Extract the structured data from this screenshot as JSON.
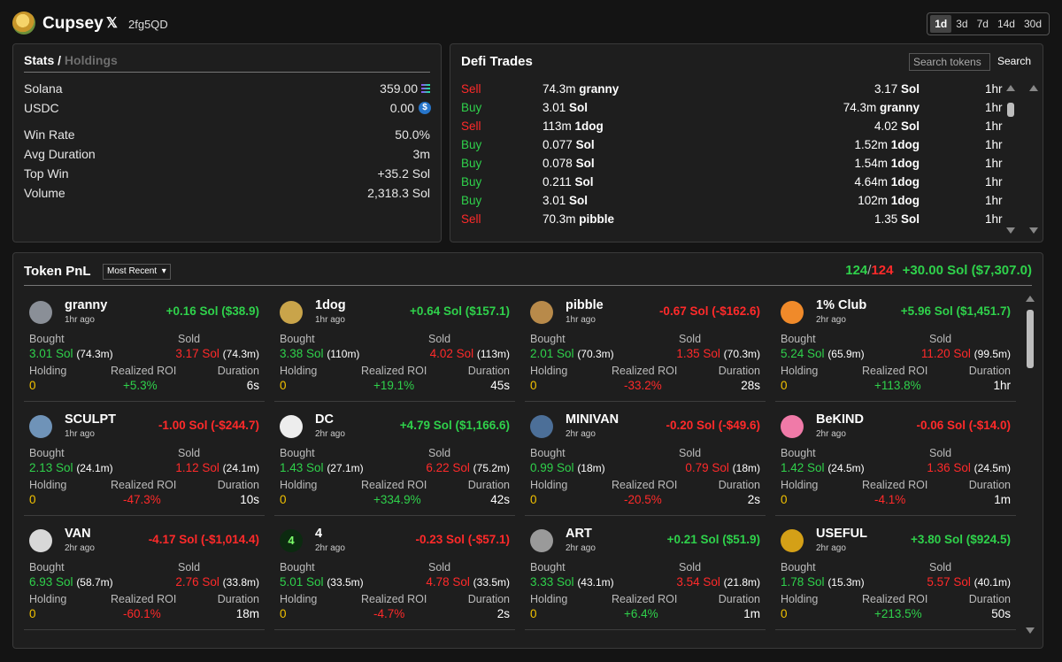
{
  "header": {
    "name": "Cupsey",
    "x_icon": "x-logo-icon",
    "handle": "2fg5QD",
    "ranges": [
      "1d",
      "3d",
      "7d",
      "14d",
      "30d"
    ],
    "active_range": "1d"
  },
  "stats": {
    "title": "Stats /",
    "tab_holdings": "Holdings",
    "solana_label": "Solana",
    "solana_value": "359.00",
    "usdc_label": "USDC",
    "usdc_value": "0.00",
    "winrate_label": "Win Rate",
    "winrate_value": "50.0%",
    "avgdur_label": "Avg Duration",
    "avgdur_value": "3m",
    "topwin_label": "Top Win",
    "topwin_value": "+35.2 Sol",
    "volume_label": "Volume",
    "volume_value": "2,318.3 Sol"
  },
  "trades": {
    "title": "Defi Trades",
    "search_placeholder": "Search tokens",
    "search_button": "Search",
    "rows": [
      {
        "side": "Sell",
        "in_amt": "74.3m",
        "in_tok": "granny",
        "out_amt": "3.17",
        "out_tok": "Sol",
        "age": "1hr"
      },
      {
        "side": "Buy",
        "in_amt": "3.01",
        "in_tok": "Sol",
        "out_amt": "74.3m",
        "out_tok": "granny",
        "age": "1hr"
      },
      {
        "side": "Sell",
        "in_amt": "113m",
        "in_tok": "1dog",
        "out_amt": "4.02",
        "out_tok": "Sol",
        "age": "1hr"
      },
      {
        "side": "Buy",
        "in_amt": "0.077",
        "in_tok": "Sol",
        "out_amt": "1.52m",
        "out_tok": "1dog",
        "age": "1hr"
      },
      {
        "side": "Buy",
        "in_amt": "0.078",
        "in_tok": "Sol",
        "out_amt": "1.54m",
        "out_tok": "1dog",
        "age": "1hr"
      },
      {
        "side": "Buy",
        "in_amt": "0.211",
        "in_tok": "Sol",
        "out_amt": "4.64m",
        "out_tok": "1dog",
        "age": "1hr"
      },
      {
        "side": "Buy",
        "in_amt": "3.01",
        "in_tok": "Sol",
        "out_amt": "102m",
        "out_tok": "1dog",
        "age": "1hr"
      },
      {
        "side": "Sell",
        "in_amt": "70.3m",
        "in_tok": "pibble",
        "out_amt": "1.35",
        "out_tok": "Sol",
        "age": "1hr"
      }
    ]
  },
  "pnl": {
    "title": "Token PnL",
    "sort_value": "Most Recent",
    "wins": "124",
    "sep": "/",
    "losses": "124",
    "total": "+30.00 Sol ($7,307.0)",
    "labels": {
      "bought": "Bought",
      "sold": "Sold",
      "holding": "Holding",
      "roi": "Realized ROI",
      "duration": "Duration"
    },
    "cards": [
      {
        "name": "granny",
        "age": "1hr ago",
        "pnl": "+0.16 Sol ($38.9)",
        "pos": true,
        "bought_sol": "3.01 Sol",
        "bought_amt": "(74.3m)",
        "sold_sol": "3.17 Sol",
        "sold_amt": "(74.3m)",
        "holding": "0",
        "roi": "+5.3%",
        "duration": "6s",
        "icon": "granny-avatar-icon",
        "icon_color": "#8a8f97",
        "glyph": ""
      },
      {
        "name": "1dog",
        "age": "1hr ago",
        "pnl": "+0.64 Sol ($157.1)",
        "pos": true,
        "bought_sol": "3.38 Sol",
        "bought_amt": "(110m)",
        "sold_sol": "4.02 Sol",
        "sold_amt": "(113m)",
        "holding": "0",
        "roi": "+19.1%",
        "duration": "45s",
        "icon": "1dog-avatar-icon",
        "icon_color": "#c9a44a",
        "glyph": ""
      },
      {
        "name": "pibble",
        "age": "1hr ago",
        "pnl": "-0.67 Sol (-$162.6)",
        "pos": false,
        "bought_sol": "2.01 Sol",
        "bought_amt": "(70.3m)",
        "sold_sol": "1.35 Sol",
        "sold_amt": "(70.3m)",
        "holding": "0",
        "roi": "-33.2%",
        "duration": "28s",
        "icon": "pibble-avatar-icon",
        "icon_color": "#b88a4a",
        "glyph": ""
      },
      {
        "name": "1% Club",
        "age": "2hr ago",
        "pnl": "+5.96 Sol ($1,451.7)",
        "pos": true,
        "bought_sol": "5.24 Sol",
        "bought_amt": "(65.9m)",
        "sold_sol": "11.20 Sol",
        "sold_amt": "(99.5m)",
        "holding": "0",
        "roi": "+113.8%",
        "duration": "1hr",
        "icon": "1pct-club-avatar-icon",
        "icon_color": "#f08a2a",
        "glyph": ""
      },
      {
        "name": "SCULPT",
        "age": "1hr ago",
        "pnl": "-1.00 Sol (-$244.7)",
        "pos": false,
        "bought_sol": "2.13 Sol",
        "bought_amt": "(24.1m)",
        "sold_sol": "1.12 Sol",
        "sold_amt": "(24.1m)",
        "holding": "0",
        "roi": "-47.3%",
        "duration": "10s",
        "icon": "sculpt-avatar-icon",
        "icon_color": "#6f93b8",
        "glyph": ""
      },
      {
        "name": "DC",
        "age": "2hr ago",
        "pnl": "+4.79 Sol ($1,166.6)",
        "pos": true,
        "bought_sol": "1.43 Sol",
        "bought_amt": "(27.1m)",
        "sold_sol": "6.22 Sol",
        "sold_amt": "(75.2m)",
        "holding": "0",
        "roi": "+334.9%",
        "duration": "42s",
        "icon": "dc-avatar-icon",
        "icon_color": "#ededed",
        "glyph": ""
      },
      {
        "name": "MINIVAN",
        "age": "2hr ago",
        "pnl": "-0.20 Sol (-$49.6)",
        "pos": false,
        "bought_sol": "0.99 Sol",
        "bought_amt": "(18m)",
        "sold_sol": "0.79 Sol",
        "sold_amt": "(18m)",
        "holding": "0",
        "roi": "-20.5%",
        "duration": "2s",
        "icon": "minivan-avatar-icon",
        "icon_color": "#4c6f98",
        "glyph": ""
      },
      {
        "name": "BeKIND",
        "age": "2hr ago",
        "pnl": "-0.06 Sol (-$14.0)",
        "pos": false,
        "bought_sol": "1.42 Sol",
        "bought_amt": "(24.5m)",
        "sold_sol": "1.36 Sol",
        "sold_amt": "(24.5m)",
        "holding": "0",
        "roi": "-4.1%",
        "duration": "1m",
        "icon": "bekind-avatar-icon",
        "icon_color": "#f07aa8",
        "glyph": ""
      },
      {
        "name": "VAN",
        "age": "2hr ago",
        "pnl": "-4.17 Sol (-$1,014.4)",
        "pos": false,
        "bought_sol": "6.93 Sol",
        "bought_amt": "(58.7m)",
        "sold_sol": "2.76 Sol",
        "sold_amt": "(33.8m)",
        "holding": "0",
        "roi": "-60.1%",
        "duration": "18m",
        "icon": "van-avatar-icon",
        "icon_color": "#d8d8d8",
        "glyph": ""
      },
      {
        "name": "4",
        "age": "2hr ago",
        "pnl": "-0.23 Sol (-$57.1)",
        "pos": false,
        "bought_sol": "5.01 Sol",
        "bought_amt": "(33.5m)",
        "sold_sol": "4.78 Sol",
        "sold_amt": "(33.5m)",
        "holding": "0",
        "roi": "-4.7%",
        "duration": "2s",
        "icon": "four-avatar-icon",
        "icon_color": "#0c2a10",
        "glyph": "4"
      },
      {
        "name": "ART",
        "age": "2hr ago",
        "pnl": "+0.21 Sol ($51.9)",
        "pos": true,
        "bought_sol": "3.33 Sol",
        "bought_amt": "(43.1m)",
        "sold_sol": "3.54 Sol",
        "sold_amt": "(21.8m)",
        "holding": "0",
        "roi": "+6.4%",
        "duration": "1m",
        "icon": "art-avatar-icon",
        "icon_color": "#9a9a9a",
        "glyph": ""
      },
      {
        "name": "USEFUL",
        "age": "2hr ago",
        "pnl": "+3.80 Sol ($924.5)",
        "pos": true,
        "bought_sol": "1.78 Sol",
        "bought_amt": "(15.3m)",
        "sold_sol": "5.57 Sol",
        "sold_amt": "(40.1m)",
        "holding": "0",
        "roi": "+213.5%",
        "duration": "50s",
        "icon": "useful-avatar-icon",
        "icon_color": "#d4a017",
        "glyph": ""
      }
    ]
  },
  "colors": {
    "positive": "#2fd14b",
    "negative": "#ff2a2a",
    "holding": "#f2c200"
  }
}
